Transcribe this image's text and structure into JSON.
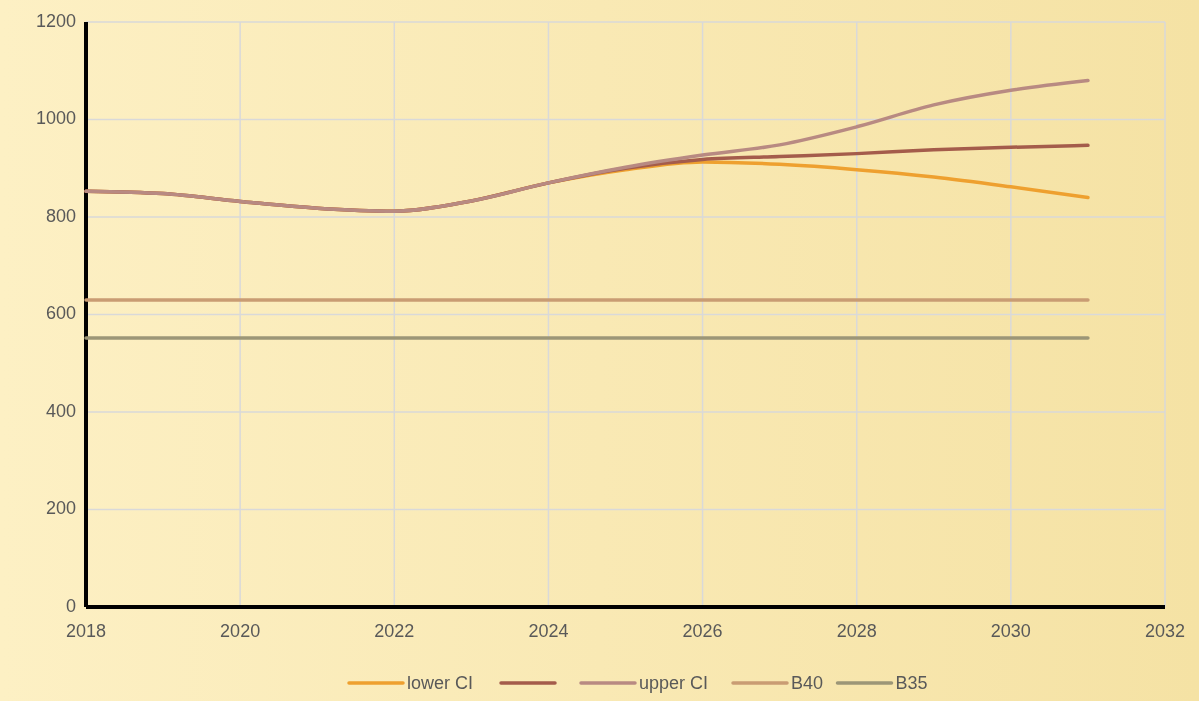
{
  "chart_data": {
    "type": "line",
    "x": [
      2018,
      2019,
      2020,
      2021,
      2022,
      2023,
      2024,
      2025,
      2026,
      2027,
      2028,
      2029,
      2030,
      2031
    ],
    "series": [
      {
        "name": "lower CI",
        "color": "#eea02f",
        "values": [
          853,
          848,
          832,
          818,
          812,
          833,
          870,
          897,
          913,
          908,
          897,
          882,
          862,
          840
        ]
      },
      {
        "color": "#a45c4b",
        "values": [
          853,
          848,
          832,
          818,
          812,
          833,
          870,
          900,
          918,
          924,
          930,
          938,
          943,
          947
        ]
      },
      {
        "name": "upper CI",
        "color": "#b88a82",
        "values": [
          853,
          848,
          832,
          818,
          812,
          833,
          870,
          902,
          927,
          948,
          985,
          1030,
          1060,
          1080
        ]
      },
      {
        "name": "B40",
        "color": "#c99c73",
        "values": [
          630,
          630,
          630,
          630,
          630,
          630,
          630,
          630,
          630,
          630,
          630,
          630,
          630,
          630
        ]
      },
      {
        "name": "B35",
        "color": "#9c9677",
        "values": [
          552,
          552,
          552,
          552,
          552,
          552,
          552,
          552,
          552,
          552,
          552,
          552,
          552,
          552
        ]
      }
    ],
    "xlim": [
      2018,
      2032
    ],
    "xticks": [
      2018,
      2020,
      2022,
      2024,
      2026,
      2028,
      2030,
      2032
    ],
    "ylim": [
      0,
      1200
    ],
    "yticks": [
      0,
      200,
      400,
      600,
      800,
      1000,
      1200
    ],
    "grid": true,
    "legend": "bottom",
    "marker": "none",
    "line_style": "solid"
  }
}
